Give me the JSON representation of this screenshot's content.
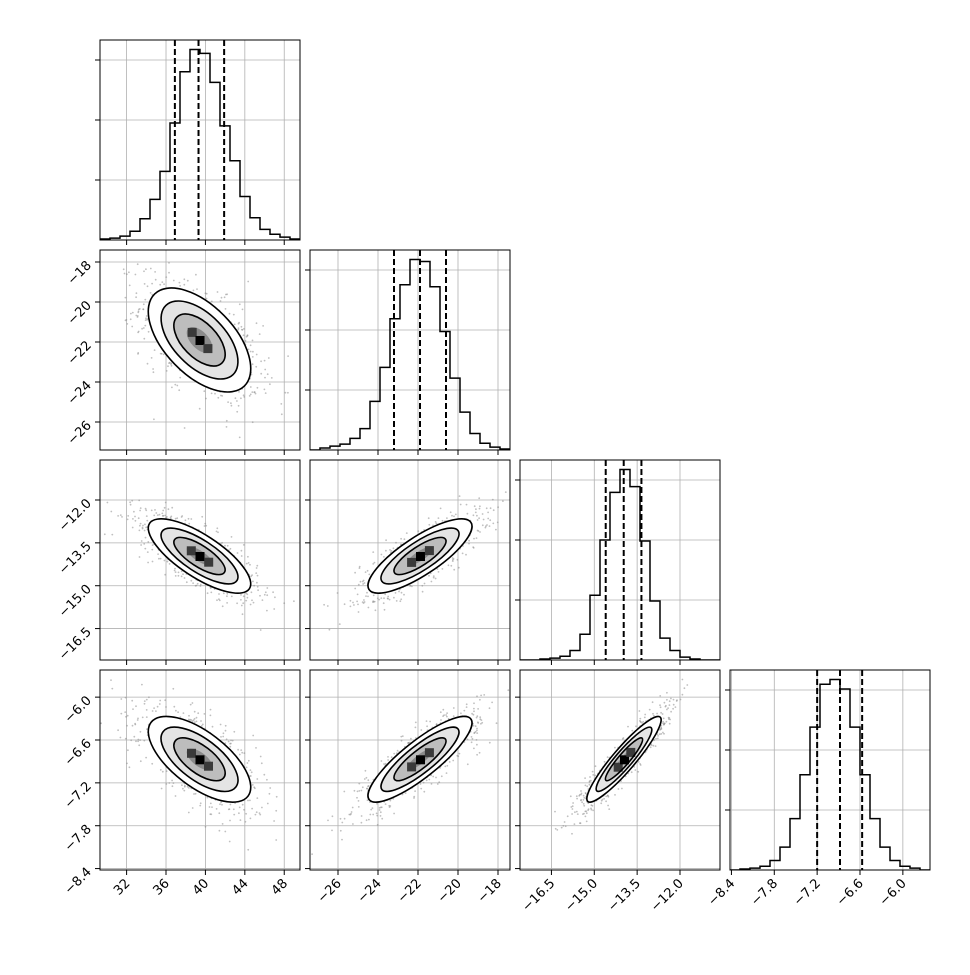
{
  "chart_data": {
    "type": "corner",
    "parameters": 4,
    "colors": {
      "line": "#000000",
      "grid": "#b0b0b0",
      "scatter": "#8c8c8c",
      "fill": "#6b6b6b"
    },
    "grid": true,
    "axes": [
      {
        "index": 0,
        "range": [
          29.3,
          49.6
        ],
        "ticks": [
          32,
          36,
          40,
          44,
          48
        ],
        "tick_labels": [
          "32",
          "36",
          "40",
          "44",
          "48"
        ]
      },
      {
        "index": 1,
        "range": [
          -27.4,
          -17.4
        ],
        "ticks": [
          -26,
          -24,
          -22,
          -20,
          -18
        ],
        "tick_labels": [
          "−26",
          "−24",
          "−22",
          "−20",
          "−18"
        ]
      },
      {
        "index": 2,
        "range": [
          -17.6,
          -10.6
        ],
        "ticks": [
          -16.5,
          -15.0,
          -13.5,
          -12.0
        ],
        "tick_labels": [
          "−16.5",
          "−15.0",
          "−13.5",
          "−12.0"
        ]
      },
      {
        "index": 3,
        "range": [
          -8.42,
          -5.62
        ],
        "ticks": [
          -8.4,
          -7.8,
          -7.2,
          -6.6,
          -6.0
        ],
        "tick_labels": [
          "−8.4",
          "−7.8",
          "−7.2",
          "−6.6",
          "−6.0"
        ]
      }
    ],
    "stats": [
      {
        "index": 0,
        "mean": 39.4,
        "std": 2.6,
        "quantiles": [
          36.9,
          39.3,
          41.9
        ]
      },
      {
        "index": 1,
        "mean": -21.9,
        "std": 1.3,
        "quantiles": [
          -23.2,
          -21.9,
          -20.6
        ]
      },
      {
        "index": 2,
        "mean": -13.96,
        "std": 0.65,
        "quantiles": [
          -14.6,
          -13.97,
          -13.35
        ]
      },
      {
        "index": 3,
        "mean": -6.87,
        "std": 0.3,
        "quantiles": [
          -7.2,
          -6.88,
          -6.57
        ]
      }
    ],
    "correlations": [
      {
        "pair": [
          1,
          0
        ],
        "rho": -0.55
      },
      {
        "pair": [
          2,
          0
        ],
        "rho": -0.75
      },
      {
        "pair": [
          2,
          1
        ],
        "rho": 0.8
      },
      {
        "pair": [
          3,
          0
        ],
        "rho": -0.65
      },
      {
        "pair": [
          3,
          1
        ],
        "rho": 0.85
      },
      {
        "pair": [
          3,
          2
        ],
        "rho": 0.92
      }
    ],
    "histograms": [
      {
        "index": 0,
        "bins": [
          29.3,
          30.315,
          31.33,
          32.345,
          33.36,
          34.375,
          35.39,
          36.405,
          37.42,
          38.435,
          39.45,
          40.465,
          41.48,
          42.495,
          43.51,
          44.525,
          45.54,
          46.555,
          47.57,
          48.585,
          49.6
        ],
        "counts": [
          1,
          2,
          4,
          9,
          22,
          42,
          71,
          121,
          174,
          197,
          193,
          163,
          118,
          82,
          45,
          23,
          11,
          6,
          3,
          1
        ]
      },
      {
        "index": 1,
        "bins": [
          -27.4,
          -26.9,
          -26.4,
          -25.9,
          -25.4,
          -24.9,
          -24.4,
          -23.9,
          -23.4,
          -22.9,
          -22.4,
          -21.9,
          -21.4,
          -20.9,
          -20.4,
          -19.9,
          -19.4,
          -18.9,
          -18.4,
          -17.9,
          -17.4
        ],
        "counts": [
          0,
          2,
          4,
          6,
          12,
          22,
          50,
          85,
          135,
          170,
          196,
          194,
          168,
          122,
          74,
          39,
          17,
          7,
          3,
          1
        ]
      },
      {
        "index": 2,
        "bins": [
          -17.6,
          -17.25,
          -16.9,
          -16.55,
          -16.2,
          -15.85,
          -15.5,
          -15.15,
          -14.8,
          -14.45,
          -14.1,
          -13.75,
          -13.4,
          -13.05,
          -12.7,
          -12.35,
          -12.0,
          -11.65,
          -11.3,
          -10.95,
          -10.6
        ],
        "counts": [
          0,
          0,
          1,
          2,
          4,
          10,
          27,
          68,
          126,
          176,
          200,
          182,
          125,
          62,
          23,
          10,
          3,
          1,
          0,
          0
        ]
      },
      {
        "index": 3,
        "bins": [
          -8.42,
          -8.28,
          -8.14,
          -8.0,
          -7.86,
          -7.72,
          -7.58,
          -7.44,
          -7.3,
          -7.16,
          -7.02,
          -6.88,
          -6.74,
          -6.6,
          -6.46,
          -6.32,
          -6.18,
          -6.04,
          -5.9,
          -5.76,
          -5.62
        ],
        "counts": [
          0,
          1,
          2,
          4,
          10,
          24,
          54,
          100,
          150,
          195,
          200,
          190,
          150,
          100,
          54,
          24,
          10,
          4,
          2,
          0
        ]
      }
    ],
    "scatter_points": 900
  }
}
